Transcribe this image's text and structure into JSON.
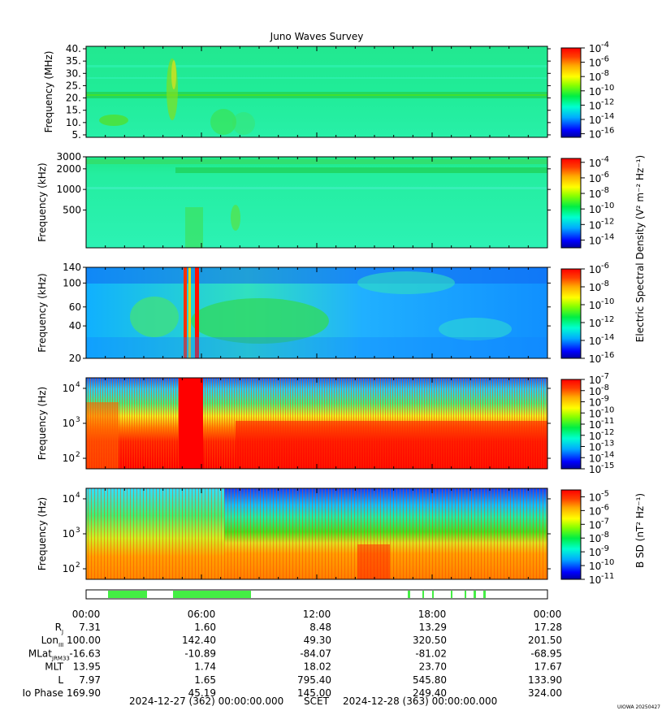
{
  "title": "Juno Waves Survey",
  "colorbar_labels": {
    "electric": "Electric Spectral Density (V² m⁻² Hz⁻¹)",
    "magnetic": "B SD (nT² Hz⁻¹)"
  },
  "chart_data": [
    {
      "type": "heatmap",
      "ylabel": "Frequency (MHz)",
      "yscale": "linear",
      "ylim": [
        4,
        41
      ],
      "yticks": [
        "5.",
        "10.",
        "15.",
        "20.",
        "25.",
        "30.",
        "35.",
        "40."
      ],
      "colorbar_ticks": [
        "-4",
        "-6",
        "-8",
        "-10",
        "-12",
        "-14",
        "-16"
      ],
      "colorbar_range_exp": [
        -16.5,
        -4
      ]
    },
    {
      "type": "heatmap",
      "ylabel": "Frequency (kHz)",
      "yscale": "log",
      "ylim": [
        140,
        3000
      ],
      "yticks": [
        "500",
        "1000",
        "2000",
        "3000"
      ],
      "colorbar_ticks": [
        "-4",
        "-6",
        "-8",
        "-10",
        "-12",
        "-14"
      ],
      "colorbar_range_exp": [
        -15,
        -3.5
      ]
    },
    {
      "type": "heatmap",
      "ylabel": "Frequency (kHz)",
      "yscale": "log",
      "ylim": [
        20,
        140
      ],
      "yticks": [
        "20",
        "40",
        "60",
        "100",
        "140"
      ],
      "colorbar_ticks": [
        "-6",
        "-8",
        "-10",
        "-12",
        "-14",
        "-16"
      ],
      "colorbar_range_exp": [
        -16,
        -6
      ]
    },
    {
      "type": "heatmap",
      "ylabel": "Frequency (Hz)",
      "yscale": "log",
      "ylim": [
        50,
        20000
      ],
      "yticks": [
        "10",
        "10",
        "10"
      ],
      "ytick_exps": [
        "2",
        "3",
        "4"
      ],
      "colorbar_ticks": [
        "-7",
        "-8",
        "-9",
        "-10",
        "-11",
        "-12",
        "-13",
        "-14",
        "-15"
      ],
      "colorbar_range_exp": [
        -15,
        -7
      ]
    },
    {
      "type": "heatmap",
      "ylabel": "Frequency (Hz)",
      "yscale": "log",
      "ylim": [
        50,
        20000
      ],
      "yticks": [
        "10",
        "10",
        "10"
      ],
      "ytick_exps": [
        "2",
        "3",
        "4"
      ],
      "colorbar_ticks": [
        "-5",
        "-6",
        "-7",
        "-8",
        "-9",
        "-10",
        "-11"
      ],
      "colorbar_range_exp": [
        -11,
        -4.5
      ]
    }
  ],
  "timeline": {
    "times": [
      "00:00",
      "06:00",
      "12:00",
      "18:00",
      "00:00"
    ],
    "rows": [
      {
        "label": "R",
        "sub": "J",
        "values": [
          "7.31",
          "1.60",
          "8.48",
          "13.29",
          "17.28"
        ]
      },
      {
        "label": "Lon",
        "sub": "III",
        "values": [
          "100.00",
          "142.40",
          "49.30",
          "320.50",
          "201.50"
        ]
      },
      {
        "label": "MLat",
        "sub": "JRM33",
        "values": [
          "-16.63",
          "-10.89",
          "-84.07",
          "-81.02",
          "-68.95"
        ]
      },
      {
        "label": "MLT",
        "sub": "",
        "values": [
          "13.95",
          "1.74",
          "18.02",
          "23.70",
          "17.67"
        ]
      },
      {
        "label": "L",
        "sub": "",
        "values": [
          "7.97",
          "1.65",
          "795.40",
          "545.80",
          "133.90"
        ]
      },
      {
        "label": "Io Phase",
        "sub": "",
        "values": [
          "169.90",
          "45.19",
          "145.00",
          "249.40",
          "324.00"
        ]
      }
    ],
    "start": "2024-12-27 (362) 00:00:00.000",
    "scet": "SCET",
    "end": "2024-12-28 (363) 00:00:00.000"
  },
  "footer_tag": "UIOWA 20250427",
  "colors": {
    "green_strip": "#44ee44"
  }
}
